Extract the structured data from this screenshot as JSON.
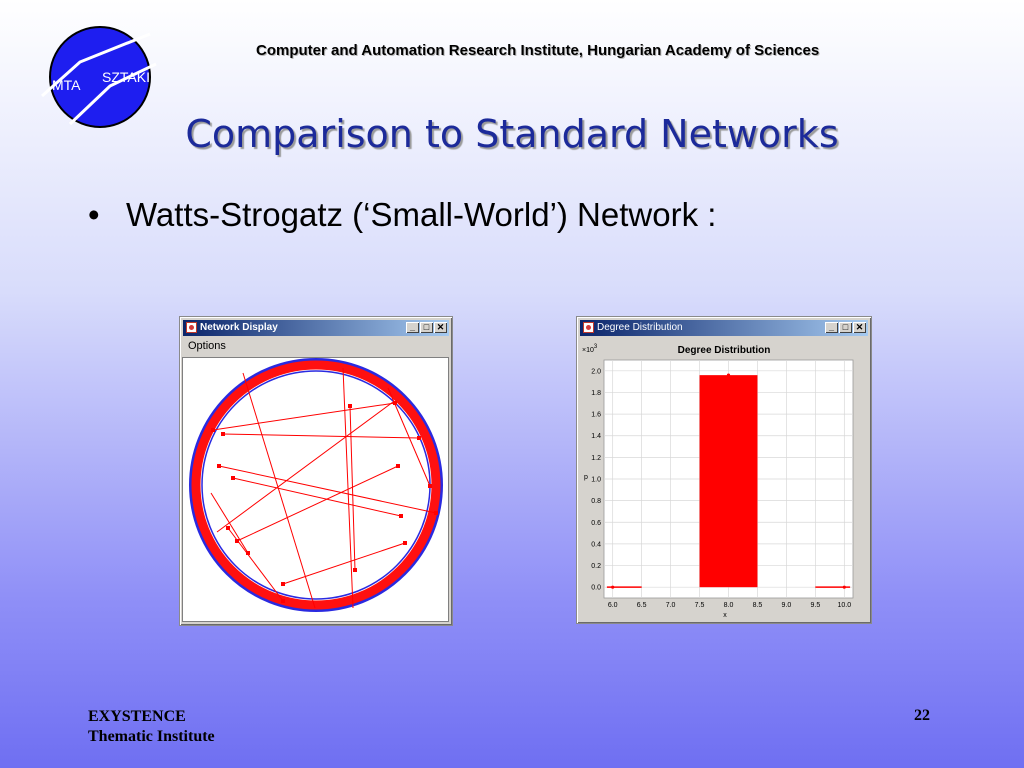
{
  "header": {
    "institute": "Computer and Automation Research Institute, Hungarian Academy of Sciences",
    "logo_left": "MTA",
    "logo_right": "SZTAKI"
  },
  "slide": {
    "title": "Comparison to Standard Networks",
    "bullet_marker": "•",
    "bullet_text": "Watts-Strogatz (‘Small-World’) Network :"
  },
  "network_window": {
    "title": "Network Display",
    "menu_options": "Options",
    "btn_minimize": "_",
    "btn_maximize": "□",
    "btn_close": "✕"
  },
  "degree_window": {
    "title": "Degree Distribution",
    "btn_minimize": "_",
    "btn_maximize": "□",
    "btn_close": "✕"
  },
  "chart_data": {
    "type": "bar",
    "title": "Degree Distribution",
    "xlabel": "x",
    "ylabel": "p",
    "y_multiplier_label": "×10",
    "y_multiplier_exp": "3",
    "xlim": [
      5.85,
      10.15
    ],
    "ylim": [
      -0.1,
      2.1
    ],
    "x_ticks": [
      "6.0",
      "6.5",
      "7.0",
      "7.5",
      "8.0",
      "8.5",
      "9.0",
      "9.5",
      "10.0"
    ],
    "y_ticks": [
      "0.0",
      "0.2",
      "0.4",
      "0.6",
      "0.8",
      "1.0",
      "1.2",
      "1.4",
      "1.6",
      "1.8",
      "2.0"
    ],
    "bars": [
      {
        "x_start": 7.5,
        "x_end": 8.5,
        "value": 1.96
      }
    ],
    "baseline_segments": [
      {
        "x_start": 5.9,
        "x_end": 6.5,
        "value": 0.0
      },
      {
        "x_start": 9.5,
        "x_end": 10.1,
        "value": 0.0
      }
    ],
    "points": [
      {
        "x": 6.0,
        "y": 0.0
      },
      {
        "x": 8.0,
        "y": 1.96
      },
      {
        "x": 10.0,
        "y": 0.0
      }
    ],
    "grid": true,
    "colors": {
      "bar": "#ff0000",
      "grid": "#d8d8d8"
    }
  },
  "footer": {
    "line1": "EXYSTENCE",
    "line2": "Thematic Institute",
    "page": "22"
  }
}
